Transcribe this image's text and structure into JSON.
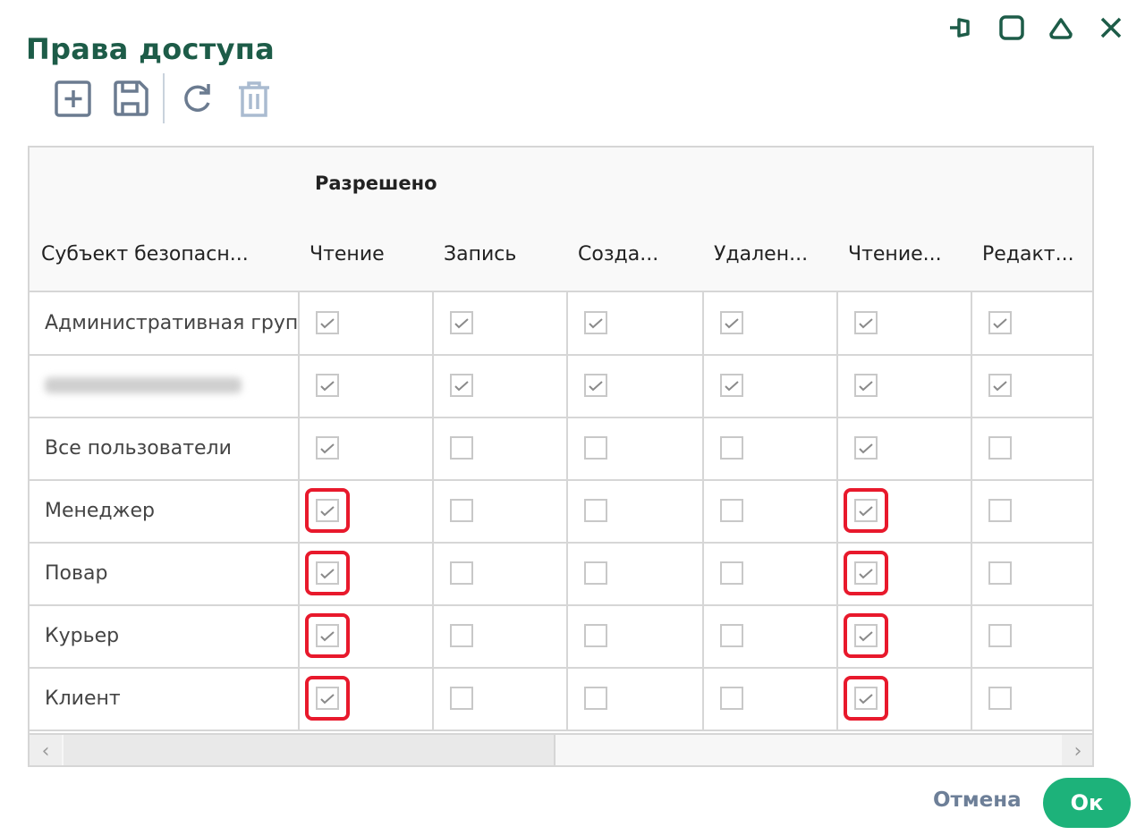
{
  "dialog": {
    "title": "Права доступа"
  },
  "window_controls": [
    "pin-icon",
    "maximize-icon",
    "collapse-icon",
    "close-icon"
  ],
  "toolbar": {
    "add": "add-icon",
    "save": "save-icon",
    "refresh": "refresh-icon",
    "delete": "delete-icon"
  },
  "table": {
    "group_header": "Разрешено",
    "subject_header": "Субъект безопасн...",
    "columns": [
      "Чтение",
      "Запись",
      "Созда...",
      "Удален...",
      "Чтение...",
      "Редакт..."
    ],
    "rows": [
      {
        "subject": "Административная груп",
        "checked": [
          true,
          true,
          true,
          true,
          true,
          true
        ],
        "highlighted": []
      },
      {
        "subject": "",
        "blurred": true,
        "checked": [
          true,
          true,
          true,
          true,
          true,
          true
        ],
        "highlighted": []
      },
      {
        "subject": "Все пользователи",
        "checked": [
          true,
          false,
          false,
          false,
          true,
          false
        ],
        "highlighted": []
      },
      {
        "subject": "Менеджер",
        "checked": [
          true,
          false,
          false,
          false,
          true,
          false
        ],
        "highlighted": [
          0,
          4
        ]
      },
      {
        "subject": "Повар",
        "checked": [
          true,
          false,
          false,
          false,
          true,
          false
        ],
        "highlighted": [
          0,
          4
        ]
      },
      {
        "subject": "Курьер",
        "checked": [
          true,
          false,
          false,
          false,
          true,
          false
        ],
        "highlighted": [
          0,
          4
        ]
      },
      {
        "subject": "Клиент",
        "checked": [
          true,
          false,
          false,
          false,
          true,
          false
        ],
        "highlighted": [
          0,
          4
        ]
      }
    ]
  },
  "footer": {
    "cancel": "Отмена",
    "ok": "Ок"
  },
  "colors": {
    "title": "#1d5c48",
    "ok": "#1db27a",
    "highlight": "#e8192c"
  }
}
